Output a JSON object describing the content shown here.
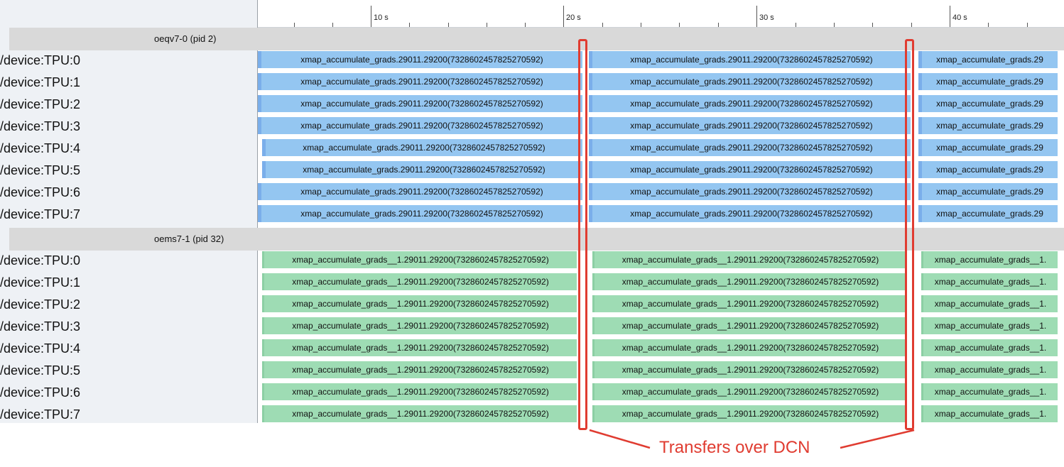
{
  "ruler": {
    "ticks": [
      "10 s",
      "20 s",
      "30 s",
      "40 s"
    ]
  },
  "processes": [
    {
      "name": "oeqv7-0 (pid 2)",
      "color": "#94c6f1",
      "rows": [
        {
          "label": "/device:TPU:0",
          "slices": [
            "xmap_accumulate_grads.29011.29200(7328602457825270592)",
            "xmap_accumulate_grads.29011.29200(7328602457825270592)",
            "xmap_accumulate_grads.29"
          ]
        },
        {
          "label": "/device:TPU:1",
          "slices": [
            "xmap_accumulate_grads.29011.29200(7328602457825270592)",
            "xmap_accumulate_grads.29011.29200(7328602457825270592)",
            "xmap_accumulate_grads.29"
          ]
        },
        {
          "label": "/device:TPU:2",
          "slices": [
            "xmap_accumulate_grads.29011.29200(7328602457825270592)",
            "xmap_accumulate_grads.29011.29200(7328602457825270592)",
            "xmap_accumulate_grads.29"
          ]
        },
        {
          "label": "/device:TPU:3",
          "slices": [
            "xmap_accumulate_grads.29011.29200(7328602457825270592)",
            "xmap_accumulate_grads.29011.29200(7328602457825270592)",
            "xmap_accumulate_grads.29"
          ]
        },
        {
          "label": "/device:TPU:4",
          "slices": [
            "xmap_accumulate_grads.29011.29200(7328602457825270592)",
            "xmap_accumulate_grads.29011.29200(7328602457825270592)",
            "xmap_accumulate_grads.29"
          ]
        },
        {
          "label": "/device:TPU:5",
          "slices": [
            "xmap_accumulate_grads.29011.29200(7328602457825270592)",
            "xmap_accumulate_grads.29011.29200(7328602457825270592)",
            "xmap_accumulate_grads.29"
          ]
        },
        {
          "label": "/device:TPU:6",
          "slices": [
            "xmap_accumulate_grads.29011.29200(7328602457825270592)",
            "xmap_accumulate_grads.29011.29200(7328602457825270592)",
            "xmap_accumulate_grads.29"
          ]
        },
        {
          "label": "/device:TPU:7",
          "slices": [
            "xmap_accumulate_grads.29011.29200(7328602457825270592)",
            "xmap_accumulate_grads.29011.29200(7328602457825270592)",
            "xmap_accumulate_grads.29"
          ]
        }
      ]
    },
    {
      "name": "oems7-1 (pid 32)",
      "color": "#9edcb4",
      "rows": [
        {
          "label": "/device:TPU:0",
          "slices": [
            "xmap_accumulate_grads__1.29011.29200(7328602457825270592)",
            "xmap_accumulate_grads__1.29011.29200(7328602457825270592)",
            "xmap_accumulate_grads__1."
          ]
        },
        {
          "label": "/device:TPU:1",
          "slices": [
            "xmap_accumulate_grads__1.29011.29200(7328602457825270592)",
            "xmap_accumulate_grads__1.29011.29200(7328602457825270592)",
            "xmap_accumulate_grads__1."
          ]
        },
        {
          "label": "/device:TPU:2",
          "slices": [
            "xmap_accumulate_grads__1.29011.29200(7328602457825270592)",
            "xmap_accumulate_grads__1.29011.29200(7328602457825270592)",
            "xmap_accumulate_grads__1."
          ]
        },
        {
          "label": "/device:TPU:3",
          "slices": [
            "xmap_accumulate_grads__1.29011.29200(7328602457825270592)",
            "xmap_accumulate_grads__1.29011.29200(7328602457825270592)",
            "xmap_accumulate_grads__1."
          ]
        },
        {
          "label": "/device:TPU:4",
          "slices": [
            "xmap_accumulate_grads__1.29011.29200(7328602457825270592)",
            "xmap_accumulate_grads__1.29011.29200(7328602457825270592)",
            "xmap_accumulate_grads__1."
          ]
        },
        {
          "label": "/device:TPU:5",
          "slices": [
            "xmap_accumulate_grads__1.29011.29200(7328602457825270592)",
            "xmap_accumulate_grads__1.29011.29200(7328602457825270592)",
            "xmap_accumulate_grads__1."
          ]
        },
        {
          "label": "/device:TPU:6",
          "slices": [
            "xmap_accumulate_grads__1.29011.29200(7328602457825270592)",
            "xmap_accumulate_grads__1.29011.29200(7328602457825270592)",
            "xmap_accumulate_grads__1."
          ]
        },
        {
          "label": "/device:TPU:7",
          "slices": [
            "xmap_accumulate_grads__1.29011.29200(7328602457825270592)",
            "xmap_accumulate_grads__1.29011.29200(7328602457825270592)",
            "xmap_accumulate_grads__1."
          ]
        }
      ]
    }
  ],
  "annotation": {
    "label": "Transfers over DCN",
    "color": "#e03c31"
  }
}
